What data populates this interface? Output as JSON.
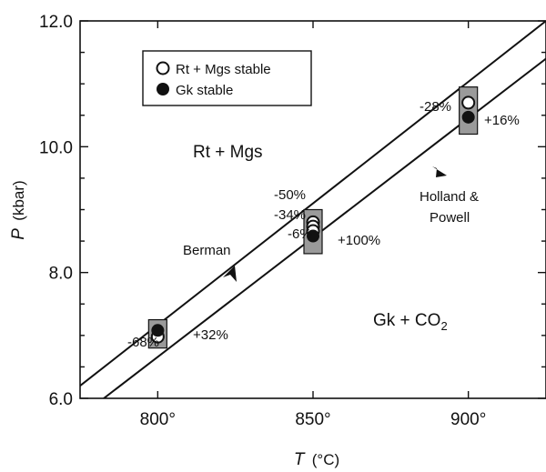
{
  "chart_data": {
    "type": "scatter",
    "xlabel_var": "T",
    "xlabel_unit": "(°C)",
    "ylabel_var": "P",
    "ylabel_unit": "(kbar)",
    "xlim": [
      775,
      925
    ],
    "ylim": [
      6.0,
      12.0
    ],
    "x_ticks": [
      800,
      850,
      900
    ],
    "x_tick_labels": [
      "800°",
      "850°",
      "900°"
    ],
    "y_ticks": [
      6.0,
      8.0,
      10.0,
      12.0
    ],
    "y_tick_labels": [
      "6.0",
      "8.0",
      "10.0",
      "12.0"
    ],
    "grid": false,
    "legend_position": "top-left",
    "legend": [
      {
        "label": "Rt + Mgs stable",
        "marker": "open-circle"
      },
      {
        "label": "Gk stable",
        "marker": "filled-circle"
      }
    ],
    "curves": [
      {
        "name": "Berman",
        "points": [
          [
            775,
            6.2
          ],
          [
            925,
            12.0
          ]
        ]
      },
      {
        "name": "Holland & Powell",
        "points": [
          [
            780,
            5.9
          ],
          [
            925,
            11.4
          ]
        ]
      }
    ],
    "bracket_boxes": [
      {
        "x": 800,
        "p_min": 6.8,
        "p_max": 7.25
      },
      {
        "x": 850,
        "p_min": 8.3,
        "p_max": 9.0
      },
      {
        "x": 900,
        "p_min": 10.2,
        "p_max": 10.95
      }
    ],
    "open_points": [
      {
        "x": 800,
        "y": 6.98
      },
      {
        "x": 850,
        "y": 8.8
      },
      {
        "x": 850,
        "y": 8.73
      },
      {
        "x": 850,
        "y": 8.66
      },
      {
        "x": 900,
        "y": 10.7
      }
    ],
    "filled_points": [
      {
        "x": 800,
        "y": 7.08
      },
      {
        "x": 850,
        "y": 8.58
      },
      {
        "x": 900,
        "y": 10.47
      }
    ],
    "annotations": {
      "rt_mgs_field": "Rt + Mgs",
      "gk_field": "Gk + CO",
      "gk_subscript": "2",
      "berman": "Berman",
      "holland_1": "Holland &",
      "holland_2": "Powell",
      "pct_800_left": "-68%",
      "pct_800_right": "+32%",
      "pct_850_a": "-50%",
      "pct_850_b": "-34%",
      "pct_850_c": "-6%",
      "pct_850_right": "+100%",
      "pct_900_left": "-28%",
      "pct_900_right": "+16%"
    }
  }
}
